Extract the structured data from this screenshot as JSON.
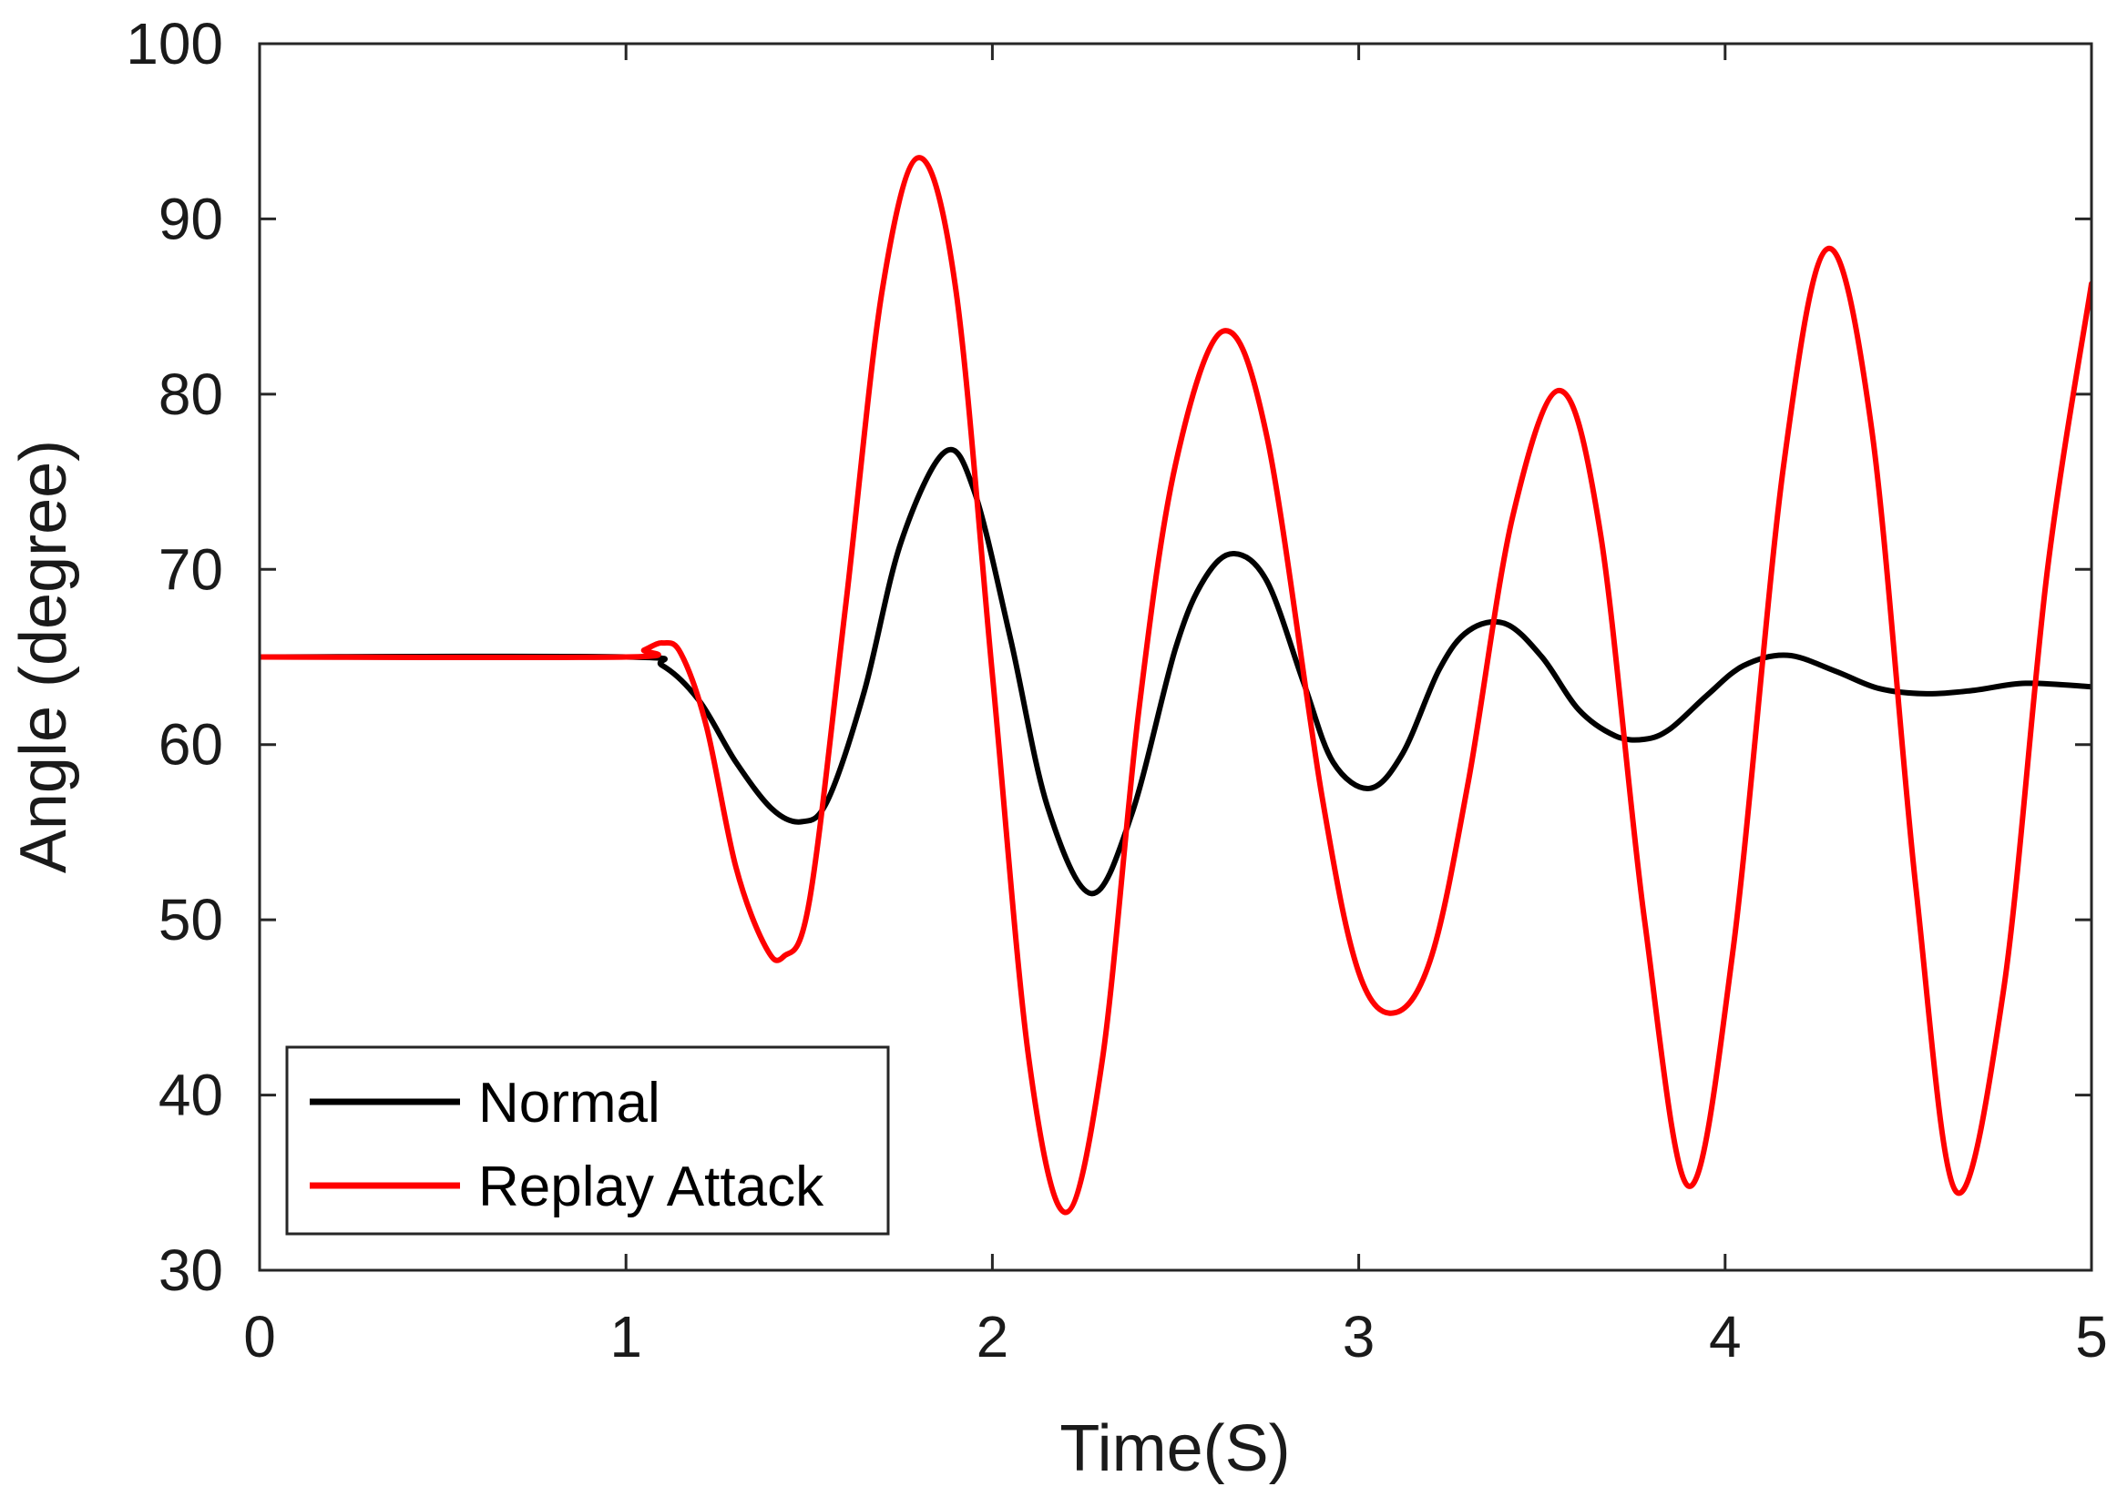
{
  "chart_data": {
    "type": "line",
    "title": "",
    "xlabel": "Time(S)",
    "ylabel": "Angle (degree)",
    "xlim": [
      0,
      5
    ],
    "ylim": [
      30,
      100
    ],
    "x_ticks": [
      "0",
      "1",
      "2",
      "3",
      "4",
      "5"
    ],
    "y_ticks": [
      "30",
      "40",
      "50",
      "60",
      "70",
      "80",
      "90",
      "100"
    ],
    "grid": false,
    "legend_position": "bottom-left",
    "series": [
      {
        "name": "Normal",
        "color": "#000000",
        "x": [
          0,
          1.0,
          1.1,
          1.2,
          1.3,
          1.4,
          1.48,
          1.55,
          1.65,
          1.75,
          1.87,
          1.95,
          2.05,
          2.15,
          2.27,
          2.38,
          2.5,
          2.58,
          2.66,
          2.75,
          2.85,
          2.93,
          3.03,
          3.12,
          3.22,
          3.3,
          3.4,
          3.5,
          3.6,
          3.7,
          3.78,
          3.85,
          3.95,
          4.05,
          4.17,
          4.3,
          4.42,
          4.55,
          4.68,
          4.82,
          5.0
        ],
        "y": [
          65,
          65,
          64.5,
          62.5,
          59,
          56.3,
          55.6,
          56.8,
          63,
          71.5,
          76.7,
          74.5,
          66,
          56.5,
          51.5,
          56,
          65.5,
          69.5,
          70.9,
          69.3,
          63.5,
          59,
          57.5,
          59.5,
          64.3,
          66.5,
          66.9,
          65,
          62,
          60.5,
          60.3,
          60.9,
          62.8,
          64.5,
          65.1,
          64.2,
          63.2,
          62.9,
          63.1,
          63.5,
          63.3
        ]
      },
      {
        "name": "Replay Attack",
        "color": "#ff0000",
        "x": [
          0,
          1.0,
          1.05,
          1.1,
          1.15,
          1.22,
          1.3,
          1.38,
          1.43,
          1.5,
          1.6,
          1.7,
          1.8,
          1.9,
          2.0,
          2.1,
          2.2,
          2.3,
          2.4,
          2.5,
          2.63,
          2.75,
          2.9,
          3.0,
          3.1,
          3.2,
          3.3,
          3.42,
          3.55,
          3.66,
          3.78,
          3.9,
          4.02,
          4.16,
          4.28,
          4.4,
          4.52,
          4.63,
          4.76,
          4.88,
          5.0
        ],
        "y": [
          65,
          65,
          65.4,
          65.8,
          65.2,
          61,
          53,
          48.5,
          47.9,
          51,
          68,
          86,
          93.5,
          86,
          64,
          42,
          33.3,
          42,
          62,
          76,
          83.6,
          77.5,
          57,
          47,
          44.7,
          48,
          58,
          73,
          80.2,
          72,
          50,
          34.8,
          48,
          76,
          88.3,
          78,
          52,
          34.5,
          46,
          70,
          86.3
        ]
      }
    ]
  }
}
